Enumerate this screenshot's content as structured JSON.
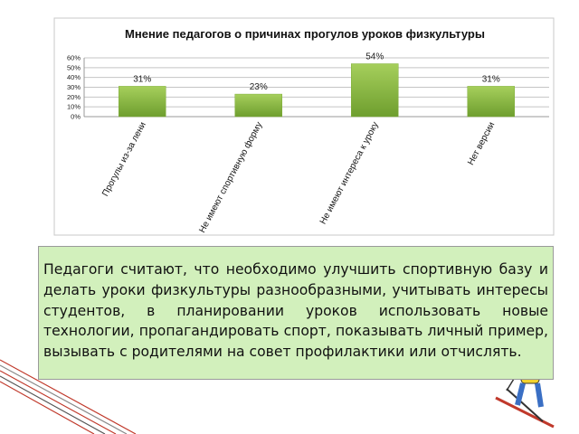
{
  "chart_data": {
    "type": "bar",
    "title": "Мнение педагогов о причинах прогулов уроков физкультуры",
    "categories": [
      "Прогулы из-за лени",
      "Не имеют спортивную форму",
      "Не имеют интереса к уроку",
      "Нет версии"
    ],
    "values": [
      31,
      23,
      54,
      31
    ],
    "value_labels": [
      "31%",
      "23%",
      "54%",
      "31%"
    ],
    "color": "#7fae3a",
    "ylim": [
      0,
      60
    ],
    "yticks": [
      {
        "value": 0,
        "label": "0%"
      },
      {
        "value": 10,
        "label": "10%"
      },
      {
        "value": 20,
        "label": "20%"
      },
      {
        "value": 30,
        "label": "30%"
      },
      {
        "value": 40,
        "label": "40%"
      },
      {
        "value": 50,
        "label": "50%"
      },
      {
        "value": 60,
        "label": "60%"
      }
    ],
    "grid": true
  },
  "text_box": "Педагоги считают, что необходимо улучшить спортивную базу и делать уроки физкультуры разнообразными, учитывать интересы студентов, в планировании уроков использовать новые технологии, пропагандировать спорт, показывать личный пример, вызывать с родителями на совет профилактики или отчислять."
}
